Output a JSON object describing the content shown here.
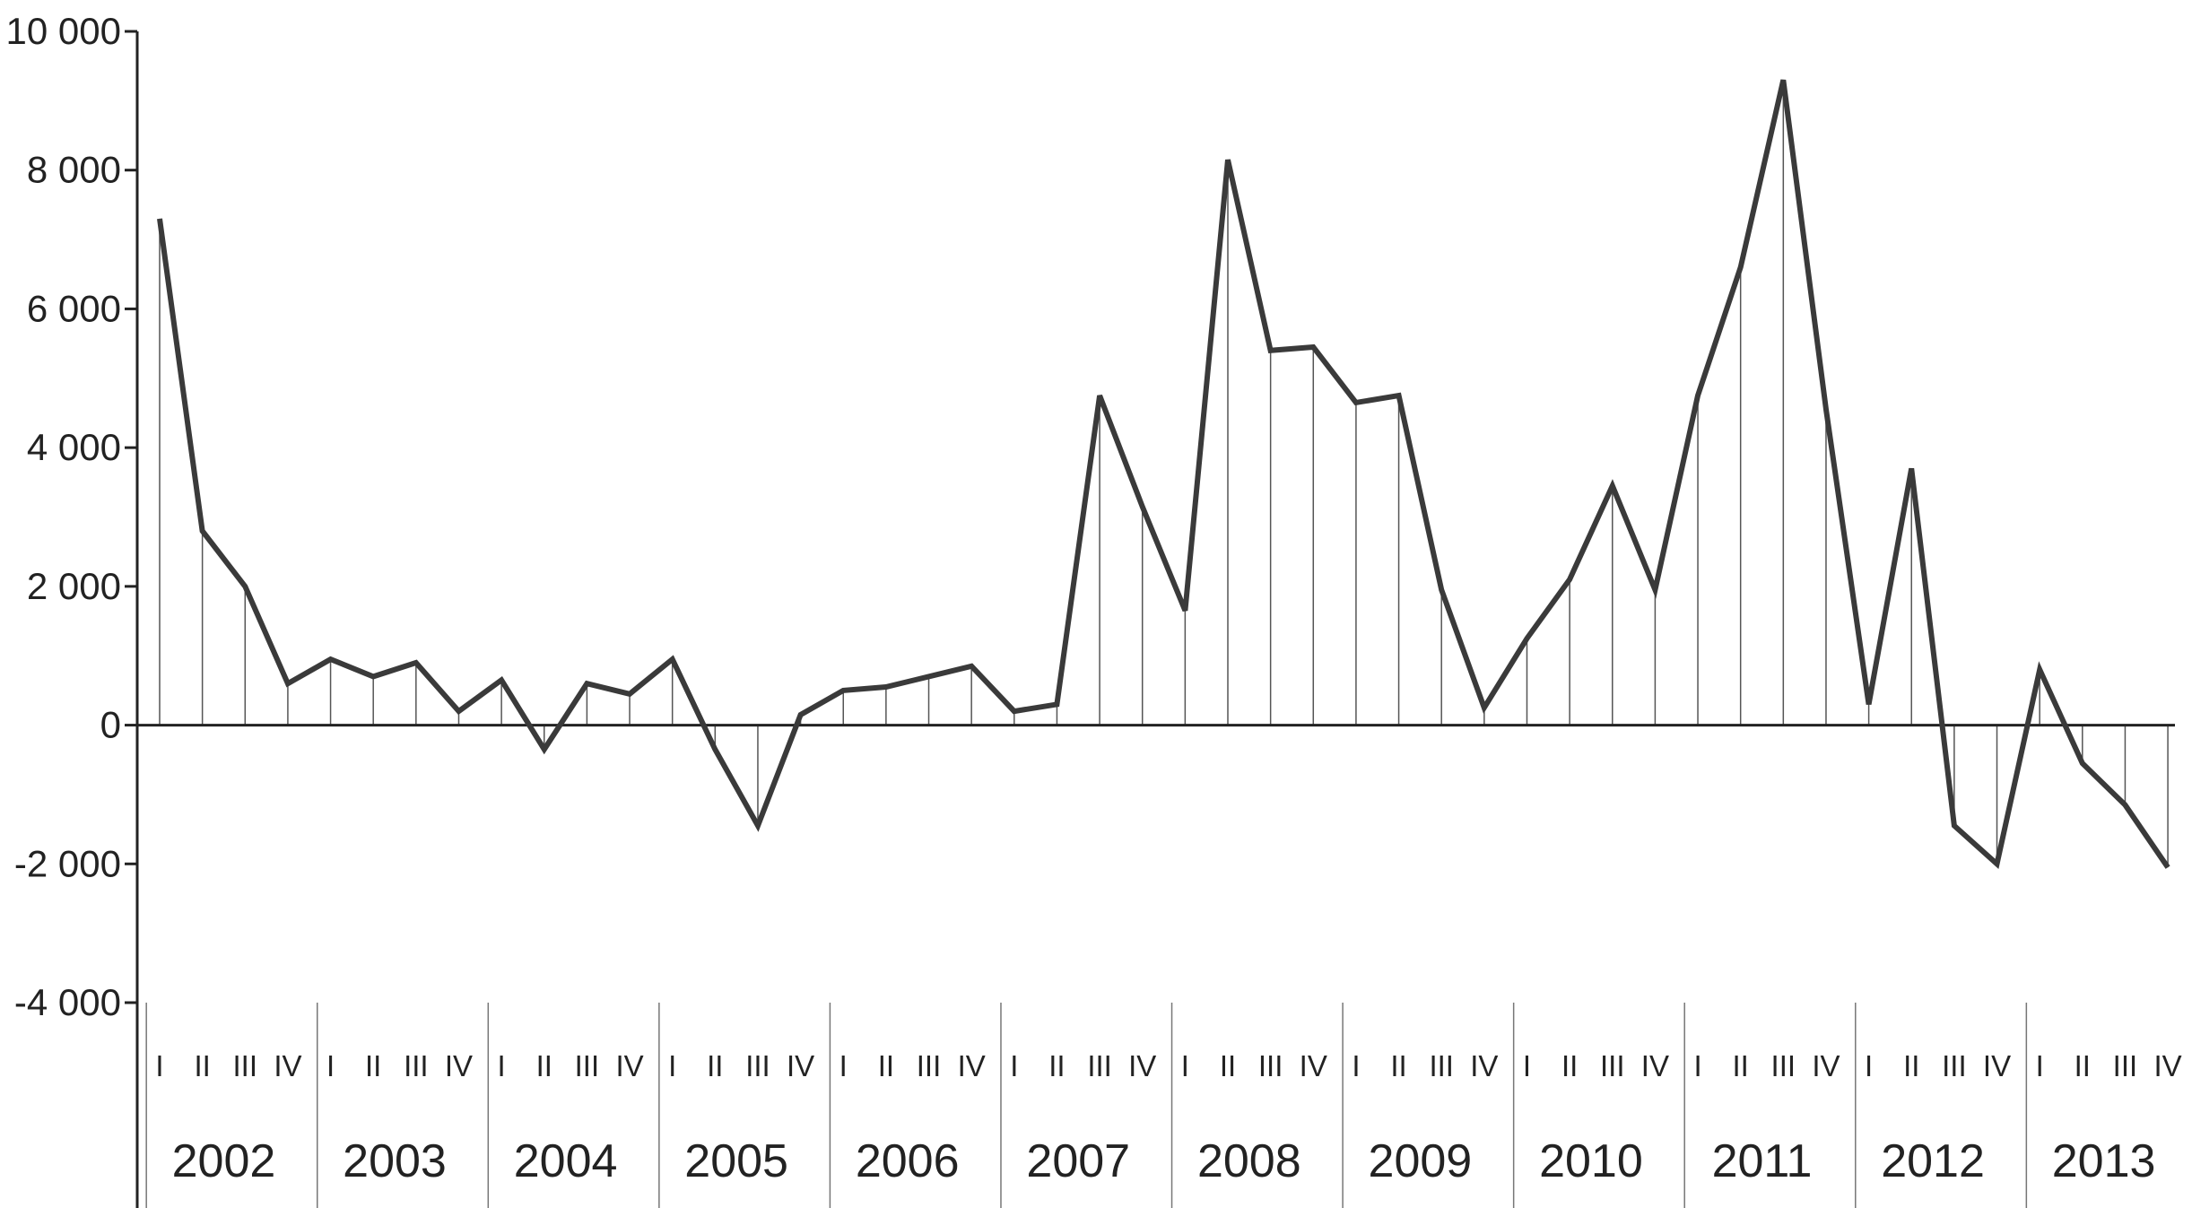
{
  "chart_data": {
    "type": "line",
    "title": "",
    "xlabel": "",
    "ylabel": "",
    "ylim": [
      -4000,
      10000
    ],
    "yticks": [
      10000,
      8000,
      6000,
      4000,
      2000,
      0,
      -2000,
      -4000
    ],
    "ytick_labels": [
      "10 000",
      "8 000",
      "6 000",
      "4 000",
      "2 000",
      "0",
      "-2 000",
      "-4 000"
    ],
    "years": [
      "2002",
      "2003",
      "2004",
      "2005",
      "2006",
      "2007",
      "2008",
      "2009",
      "2010",
      "2011",
      "2012",
      "2013"
    ],
    "quarters": [
      "I",
      "II",
      "III",
      "IV"
    ],
    "values": [
      7300,
      2800,
      2000,
      600,
      950,
      700,
      900,
      200,
      650,
      -350,
      600,
      450,
      950,
      -350,
      -1450,
      150,
      500,
      550,
      700,
      850,
      200,
      300,
      4750,
      3150,
      1650,
      8150,
      5400,
      5450,
      4650,
      4750,
      1950,
      250,
      1250,
      2100,
      3450,
      1950,
      4750,
      6600,
      9300,
      4550,
      300,
      3700,
      -1450,
      -2000,
      800,
      -550,
      -1150,
      -2050
    ],
    "grid": false,
    "drop_lines": true,
    "line_color": "#3a3a3a"
  }
}
